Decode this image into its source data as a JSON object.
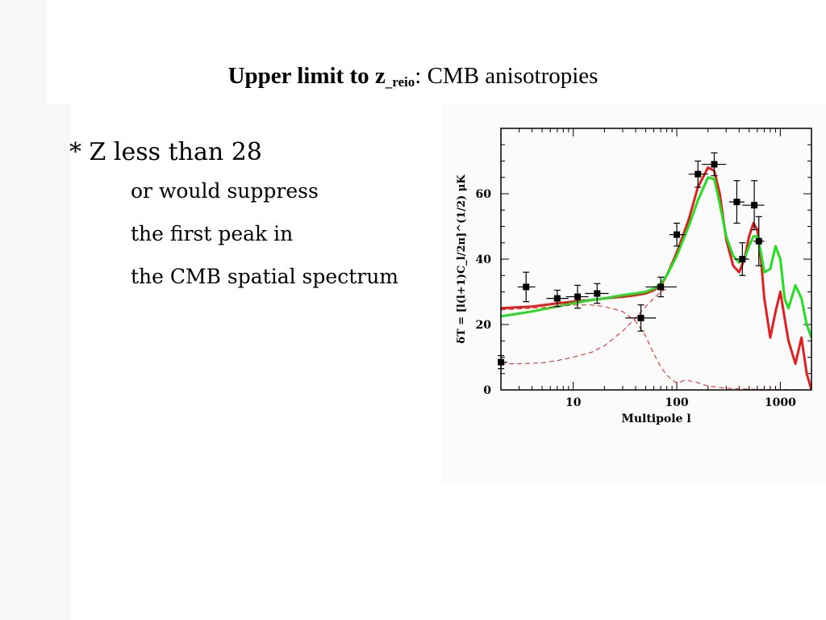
{
  "slide": {
    "title_bold": "Upper limit to z",
    "title_sub": "_reio",
    "title_rest": ": CMB anisotropies"
  },
  "text": {
    "head": "* Z less than 28",
    "lines": [
      "or would suppress",
      "the first peak in",
      "the CMB spatial spectrum"
    ]
  },
  "colors": {
    "red_curve": "#e02020",
    "green_curve": "#22dd22",
    "data_points": "#000000"
  },
  "chart_data": {
    "type": "line",
    "xscale": "log",
    "xlim": [
      2,
      2000
    ],
    "ylim": [
      0,
      80
    ],
    "xlabel": "Multipole l",
    "ylabel": "δT = [l(l+1)C_l/2π]^(1/2) μK",
    "xticks": [
      {
        "value": 10,
        "label": "10"
      },
      {
        "value": 100,
        "label": "100"
      },
      {
        "value": 1000,
        "label": "1000"
      }
    ],
    "yticks": [
      {
        "value": 0,
        "label": "0"
      },
      {
        "value": 20,
        "label": "20"
      },
      {
        "value": 40,
        "label": "40"
      },
      {
        "value": 60,
        "label": "60"
      }
    ],
    "series": [
      {
        "color": "#e02020",
        "style": "solid",
        "width": 3,
        "x": [
          2,
          4,
          7,
          10,
          15,
          20,
          30,
          40,
          50,
          60,
          70,
          80,
          100,
          130,
          160,
          200,
          230,
          260,
          300,
          350,
          400,
          450,
          500,
          550,
          600,
          650,
          700,
          800,
          900,
          1000,
          1100,
          1200,
          1400,
          1600,
          1800,
          2000
        ],
        "y": [
          25,
          25.5,
          26.5,
          27,
          27.5,
          28,
          28.5,
          29,
          29.5,
          30.5,
          32,
          35,
          42,
          52,
          62,
          68,
          67,
          60,
          46,
          38,
          36,
          40,
          47,
          51,
          49,
          40,
          28,
          16,
          24,
          30,
          22,
          15,
          8,
          16,
          5,
          0
        ]
      },
      {
        "color": "#22dd22",
        "style": "solid",
        "width": 3,
        "x": [
          2,
          4,
          7,
          10,
          15,
          20,
          30,
          40,
          50,
          60,
          70,
          80,
          100,
          130,
          160,
          200,
          230,
          260,
          300,
          350,
          400,
          450,
          500,
          550,
          600,
          650,
          700,
          800,
          900,
          1000,
          1100,
          1200,
          1400,
          1600,
          1800,
          2000
        ],
        "y": [
          22.5,
          24,
          25.5,
          26.5,
          27.5,
          28,
          29,
          29.5,
          30,
          31,
          32.5,
          35,
          41,
          50,
          58,
          65,
          64.5,
          57,
          47,
          41,
          39,
          40,
          44,
          47,
          47,
          42,
          36,
          37,
          44,
          40,
          28,
          25,
          32,
          28,
          20,
          16
        ]
      },
      {
        "color": "#e02020",
        "style": "dashed",
        "width": 1,
        "x": [
          2,
          3,
          5,
          7,
          10,
          15,
          20,
          30,
          40,
          50,
          60,
          70,
          80
        ],
        "y": [
          8,
          8,
          8.3,
          9,
          10,
          11.5,
          13.5,
          18,
          22,
          25.5,
          28,
          30,
          31
        ]
      },
      {
        "color": "#e02020",
        "style": "dashed",
        "width": 1,
        "x": [
          2,
          4,
          7,
          10,
          15,
          20,
          30,
          40,
          50,
          60,
          70,
          80,
          100,
          120,
          150,
          200,
          300,
          500,
          1000,
          2000
        ],
        "y": [
          24.5,
          25,
          25.5,
          26,
          26,
          25.5,
          24,
          21,
          16.5,
          11,
          7,
          4.5,
          2,
          3,
          2.5,
          1.2,
          0.5,
          0.2,
          0.1,
          0
        ]
      }
    ],
    "points": [
      {
        "x": 2,
        "y": 8.5,
        "x_lo": 2,
        "x_hi": 2.3,
        "y_lo": 6.5,
        "y_hi": 10.5
      },
      {
        "x": 3.5,
        "y": 31.5,
        "x_lo": 2.9,
        "x_hi": 4.3,
        "y_lo": 27,
        "y_hi": 36
      },
      {
        "x": 7,
        "y": 28,
        "x_lo": 5.5,
        "x_hi": 9,
        "y_lo": 25.5,
        "y_hi": 30.5
      },
      {
        "x": 11,
        "y": 28.5,
        "x_lo": 8.5,
        "x_hi": 14,
        "y_lo": 25,
        "y_hi": 32
      },
      {
        "x": 17,
        "y": 29.5,
        "x_lo": 13,
        "x_hi": 22,
        "y_lo": 26.5,
        "y_hi": 32.5
      },
      {
        "x": 45,
        "y": 22,
        "x_lo": 32,
        "x_hi": 63,
        "y_lo": 18,
        "y_hi": 26
      },
      {
        "x": 70,
        "y": 31.5,
        "x_lo": 50,
        "x_hi": 100,
        "y_lo": 28.5,
        "y_hi": 34.5
      },
      {
        "x": 100,
        "y": 47.5,
        "x_lo": 85,
        "x_hi": 120,
        "y_lo": 44,
        "y_hi": 51
      },
      {
        "x": 160,
        "y": 66,
        "x_lo": 130,
        "x_hi": 200,
        "y_lo": 62,
        "y_hi": 70
      },
      {
        "x": 230,
        "y": 69,
        "x_lo": 175,
        "x_hi": 300,
        "y_lo": 65.5,
        "y_hi": 72.5
      },
      {
        "x": 380,
        "y": 57.5,
        "x_lo": 320,
        "x_hi": 450,
        "y_lo": 51,
        "y_hi": 64
      },
      {
        "x": 430,
        "y": 40,
        "x_lo": 360,
        "x_hi": 500,
        "y_lo": 35,
        "y_hi": 45
      },
      {
        "x": 560,
        "y": 56.5,
        "x_lo": 430,
        "x_hi": 700,
        "y_lo": 49,
        "y_hi": 64
      },
      {
        "x": 620,
        "y": 45.5,
        "x_lo": 550,
        "x_hi": 700,
        "y_lo": 38,
        "y_hi": 53
      }
    ]
  }
}
